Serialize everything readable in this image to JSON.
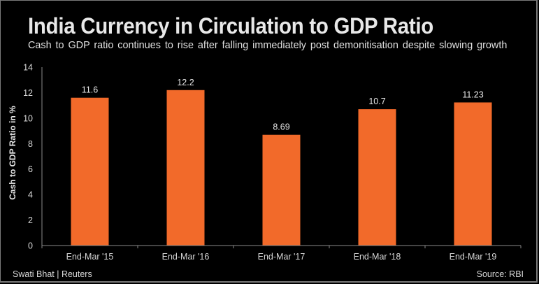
{
  "chart_data": {
    "type": "bar",
    "title": "India Currency in Circulation to GDP Ratio",
    "subtitle": "Cash to GDP ratio continues to rise after falling immediately post demonitisation despite slowing growth",
    "xlabel": "",
    "ylabel": "Cash to GDP Ratio in %",
    "categories": [
      "End-Mar '15",
      "End-Mar '16",
      "End-Mar '17",
      "End-Mar '18",
      "End-Mar '19"
    ],
    "values": [
      11.6,
      12.2,
      8.69,
      10.7,
      11.23
    ],
    "data_labels": [
      "11.6",
      "12.2",
      "8.69",
      "10.7",
      "11.23"
    ],
    "ylim": [
      0,
      14
    ],
    "yticks": [
      0,
      2,
      4,
      6,
      8,
      10,
      12,
      14
    ],
    "grid": false,
    "legend": "none",
    "bar_color": "#f26a2a",
    "background_color": "#000000"
  },
  "footer": {
    "credit": "Swati Bhat | Reuters",
    "source": "Source: RBI"
  }
}
